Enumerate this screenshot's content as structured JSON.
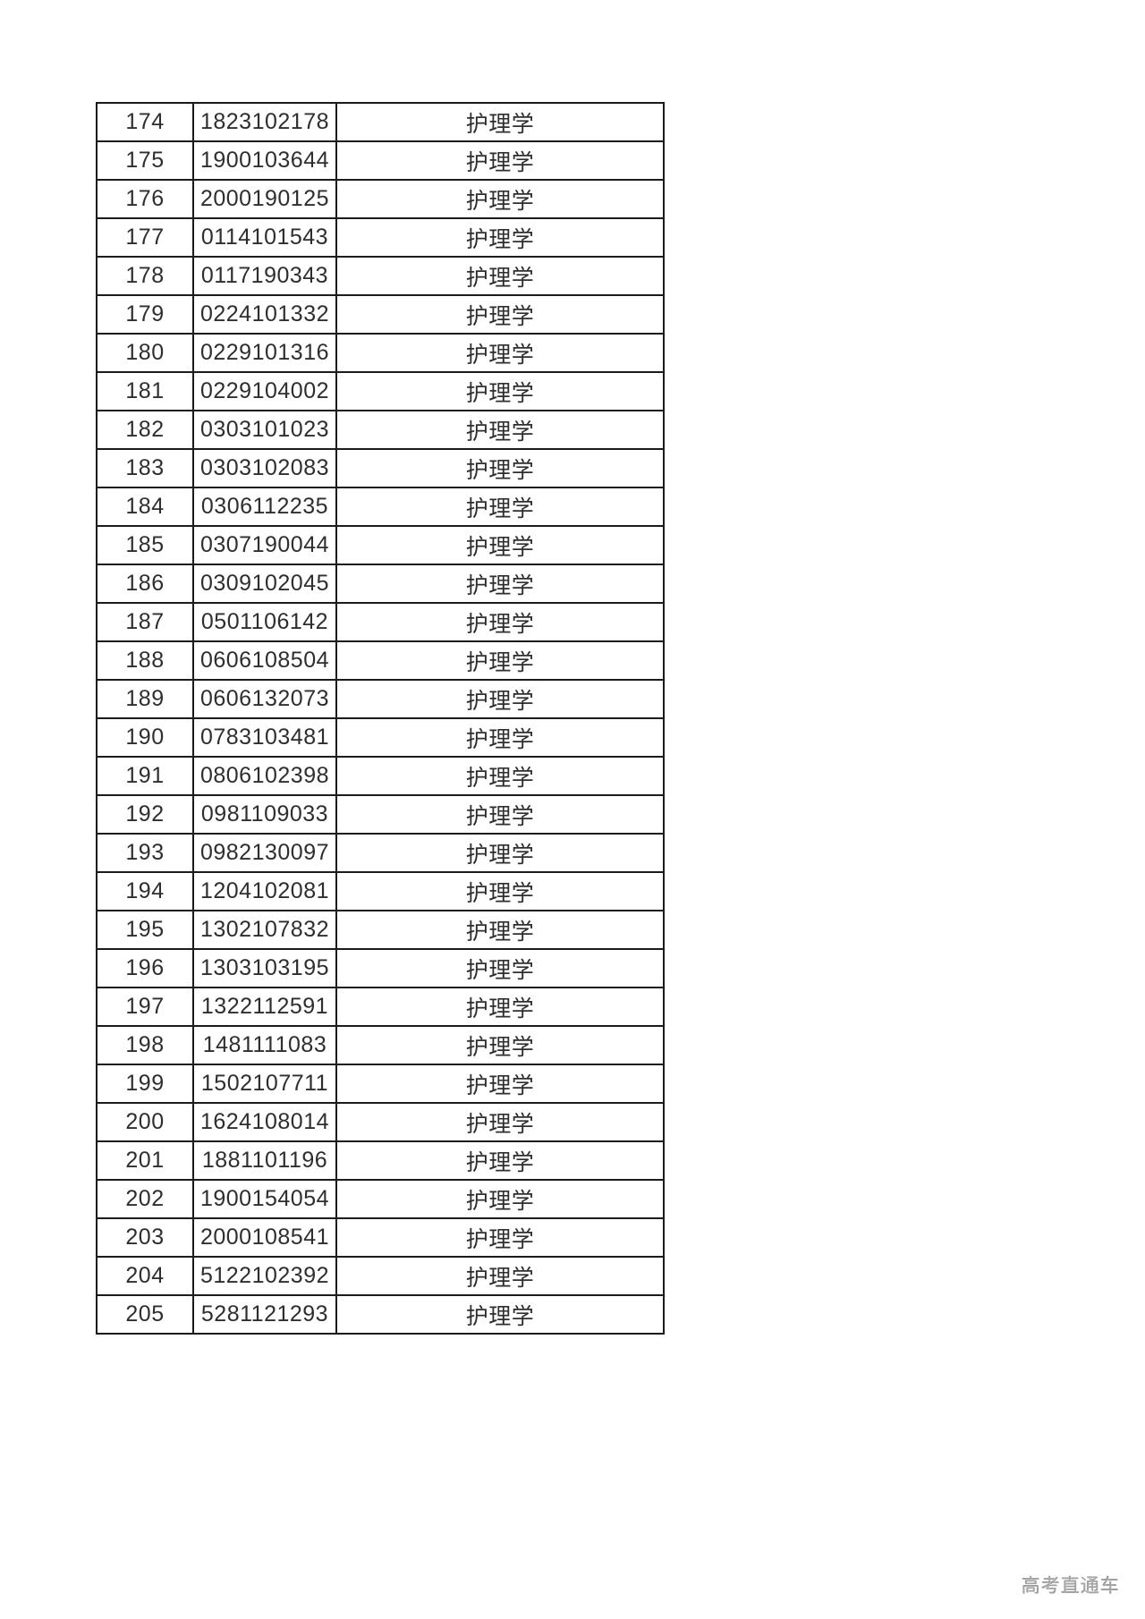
{
  "page": {
    "background": "#ffffff",
    "watermark": {
      "text": "高考直通车",
      "color": "#a6a6a6"
    }
  },
  "table": {
    "border_color": "#1b1b1b",
    "text_color": "#2e2e2e",
    "rows": [
      [
        "174",
        "1823102178",
        "护理学"
      ],
      [
        "175",
        "1900103644",
        "护理学"
      ],
      [
        "176",
        "2000190125",
        "护理学"
      ],
      [
        "177",
        "0114101543",
        "护理学"
      ],
      [
        "178",
        "0117190343",
        "护理学"
      ],
      [
        "179",
        "0224101332",
        "护理学"
      ],
      [
        "180",
        "0229101316",
        "护理学"
      ],
      [
        "181",
        "0229104002",
        "护理学"
      ],
      [
        "182",
        "0303101023",
        "护理学"
      ],
      [
        "183",
        "0303102083",
        "护理学"
      ],
      [
        "184",
        "0306112235",
        "护理学"
      ],
      [
        "185",
        "0307190044",
        "护理学"
      ],
      [
        "186",
        "0309102045",
        "护理学"
      ],
      [
        "187",
        "0501106142",
        "护理学"
      ],
      [
        "188",
        "0606108504",
        "护理学"
      ],
      [
        "189",
        "0606132073",
        "护理学"
      ],
      [
        "190",
        "0783103481",
        "护理学"
      ],
      [
        "191",
        "0806102398",
        "护理学"
      ],
      [
        "192",
        "0981109033",
        "护理学"
      ],
      [
        "193",
        "0982130097",
        "护理学"
      ],
      [
        "194",
        "1204102081",
        "护理学"
      ],
      [
        "195",
        "1302107832",
        "护理学"
      ],
      [
        "196",
        "1303103195",
        "护理学"
      ],
      [
        "197",
        "1322112591",
        "护理学"
      ],
      [
        "198",
        "1481111083",
        "护理学"
      ],
      [
        "199",
        "1502107711",
        "护理学"
      ],
      [
        "200",
        "1624108014",
        "护理学"
      ],
      [
        "201",
        "1881101196",
        "护理学"
      ],
      [
        "202",
        "1900154054",
        "护理学"
      ],
      [
        "203",
        "2000108541",
        "护理学"
      ],
      [
        "204",
        "5122102392",
        "护理学"
      ],
      [
        "205",
        "5281121293",
        "护理学"
      ]
    ]
  }
}
